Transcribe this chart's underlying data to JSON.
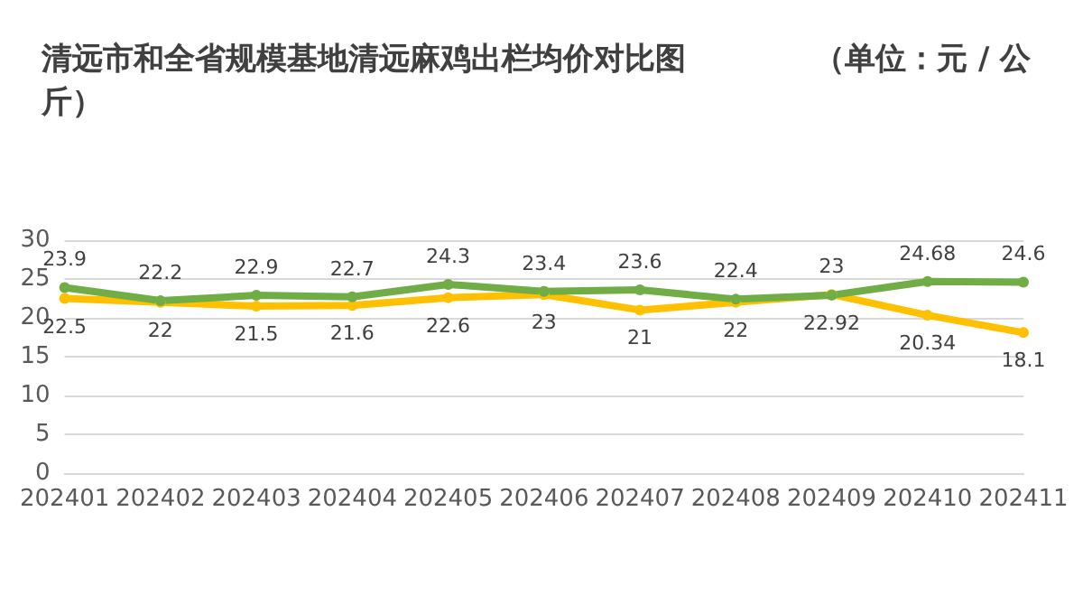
{
  "chart_data": {
    "type": "line",
    "title": "清远市和全省规模基地清远麻鸡出栏均价对比图            （单位：元 / 公斤）",
    "categories": [
      "202401",
      "202402",
      "202403",
      "202404",
      "202405",
      "202406",
      "202407",
      "202408",
      "202409",
      "202410",
      "202411"
    ],
    "series": [
      {
        "color": "#ffc000",
        "values": [
          22.5,
          22,
          21.5,
          21.6,
          22.6,
          23,
          21,
          22,
          23,
          20.34,
          18.1
        ]
      },
      {
        "color": "#70ad47",
        "values": [
          23.9,
          22.2,
          22.9,
          22.7,
          24.3,
          23.4,
          23.6,
          22.4,
          22.92,
          24.68,
          24.6
        ]
      }
    ],
    "ylim": [
      0,
      30
    ],
    "yticks": [
      0,
      5,
      10,
      15,
      20,
      25,
      30
    ],
    "grid": "y",
    "marker": "circle",
    "data_labels": true
  }
}
